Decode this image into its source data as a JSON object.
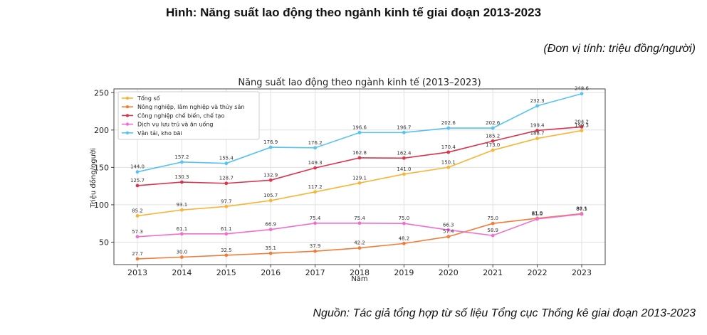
{
  "figure": {
    "caption": "Hình: Năng suất lao động theo ngành kinh tế giai đoạn 2013-2023",
    "unit_note": "(Đơn vị tính: triệu đồng/người)",
    "source_note": "Nguồn: Tác giả tổng hợp từ số liệu Tổng cục Thống kê giai đoạn 2013-2023"
  },
  "chart_data": {
    "type": "line",
    "title": "Năng suất lao động theo ngành kinh tế (2013–2023)",
    "xlabel": "Năm",
    "ylabel": "Triệu đồng/người",
    "x": [
      2013,
      2014,
      2015,
      2016,
      2017,
      2018,
      2019,
      2020,
      2021,
      2022,
      2023
    ],
    "ylim": [
      20,
      255
    ],
    "yticks": [
      50,
      100,
      150,
      200,
      250
    ],
    "grid": true,
    "legend": "top-left",
    "series": [
      {
        "name": "Tổng số",
        "color": "#f7b538",
        "values": [
          85.2,
          93.1,
          97.7,
          105.7,
          117.2,
          129.1,
          141.0,
          150.1,
          173.0,
          188.7,
          199.3
        ],
        "labels": [
          "85.2",
          "93.1",
          "97.7",
          "105.7",
          "117.2",
          "129.1",
          "141.0",
          "150.1",
          "173.0",
          "188.7",
          "199.3"
        ]
      },
      {
        "name": "Nông nghiệp, lâm nghiệp và thủy sản",
        "color": "#ef7d39",
        "values": [
          27.7,
          30.0,
          32.5,
          35.1,
          37.9,
          42.2,
          48.2,
          57.4,
          75.0,
          81.9,
          88.1
        ],
        "labels": [
          "27.7",
          "30.0",
          "32.5",
          "35.1",
          "37.9",
          "42.2",
          "48.2",
          "57.4",
          "75.0",
          "81.9",
          "88.1"
        ]
      },
      {
        "name": "Công nghiệp chế biến, chế tạo",
        "color": "#d8354f",
        "values": [
          125.7,
          130.3,
          128.7,
          132.9,
          149.3,
          162.8,
          162.4,
          170.4,
          185.2,
          199.4,
          204.2
        ],
        "labels": [
          "125.7",
          "130.3",
          "128.7",
          "132.9",
          "149.3",
          "162.8",
          "162.4",
          "170.4",
          "185.2",
          "199.4",
          "204.2"
        ]
      },
      {
        "name": "Dịch vụ lưu trú và ăn uống",
        "color": "#ee6fcf",
        "values": [
          57.3,
          61.1,
          61.1,
          66.9,
          75.4,
          75.4,
          75.0,
          66.3,
          58.9,
          81.0,
          87.5
        ],
        "labels": [
          "57.3",
          "61.1",
          "61.1",
          "66.9",
          "75.4",
          "75.4",
          "75.0",
          "66.3",
          "58.9",
          "81.0",
          "87.5"
        ]
      },
      {
        "name": "Vận tải, kho bãi",
        "color": "#57c3ee",
        "values": [
          144.0,
          157.2,
          155.4,
          176.9,
          176.2,
          196.6,
          196.7,
          202.6,
          202.6,
          232.3,
          248.6
        ],
        "labels": [
          "144.0",
          "157.2",
          "155.4",
          "176.9",
          "176.2",
          "196.6",
          "196.7",
          "202.6",
          "202.6",
          "232.3",
          "248.6"
        ]
      }
    ]
  }
}
